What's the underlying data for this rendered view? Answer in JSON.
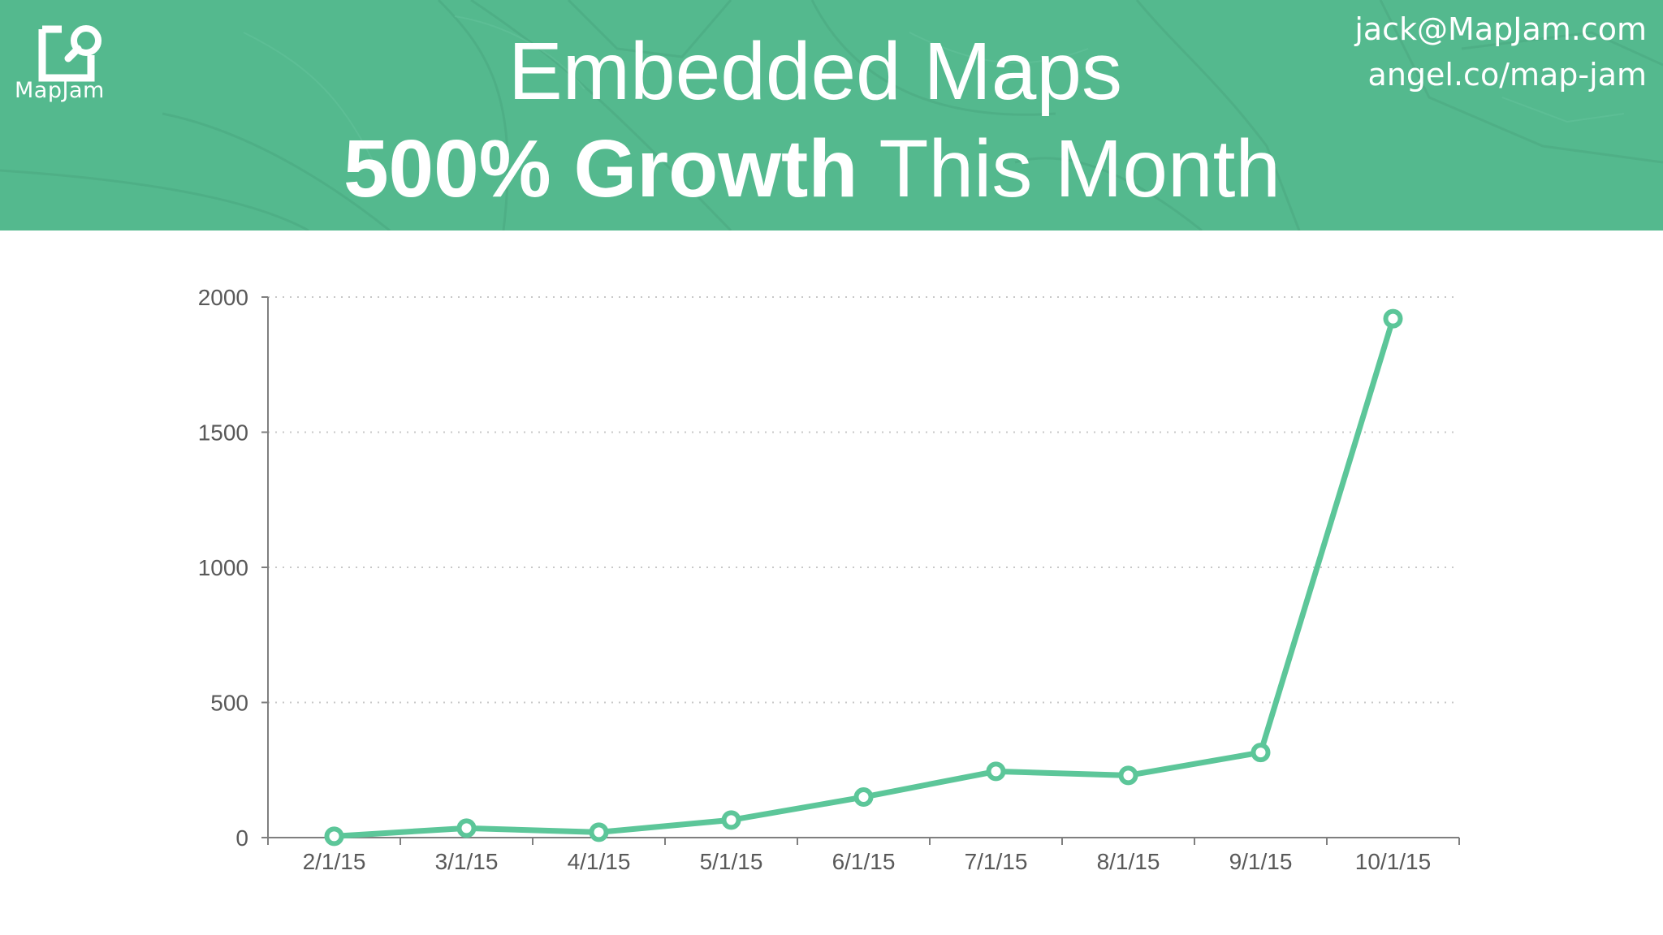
{
  "header": {
    "logo_text": "MapJam",
    "title_line1": "Embedded Maps",
    "title_line2_bold": "500% Growth",
    "title_line2_rest": " This Month",
    "contact_email": "jack@MapJam.com",
    "contact_url": "angel.co/map-jam",
    "background_color": "#54b98e"
  },
  "chart_data": {
    "type": "line",
    "x": [
      "2/1/15",
      "3/1/15",
      "4/1/15",
      "5/1/15",
      "6/1/15",
      "7/1/15",
      "8/1/15",
      "9/1/15",
      "10/1/15"
    ],
    "series": [
      {
        "values": [
          5,
          35,
          20,
          65,
          150,
          245,
          230,
          315,
          1920
        ],
        "color": "#5cc699"
      }
    ],
    "ylim": [
      0,
      2000
    ],
    "yticks": [
      "0",
      "500",
      "1000",
      "1500",
      "2000"
    ],
    "grid": true,
    "legend": "none"
  }
}
